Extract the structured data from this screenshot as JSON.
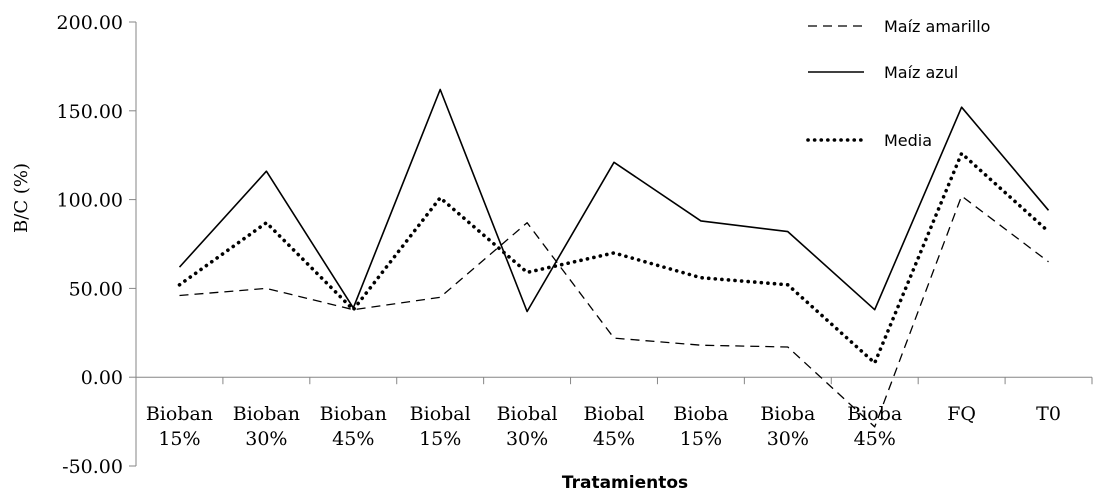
{
  "chart_data": {
    "type": "line",
    "xlabel": "Tratamientos",
    "ylabel": "B/C  (%)",
    "ylim": [
      -50,
      200
    ],
    "yticks": [
      "-50.00",
      "0.00",
      "50.00",
      "100.00",
      "150.00",
      "200.00"
    ],
    "categories": [
      [
        "Bioban",
        "15%"
      ],
      [
        "Bioban",
        "30%"
      ],
      [
        "Bioban",
        "45%"
      ],
      [
        "Biobal",
        "15%"
      ],
      [
        "Biobal",
        "30%"
      ],
      [
        "Biobal",
        "45%"
      ],
      [
        "Bioba",
        "15%"
      ],
      [
        "Bioba",
        "30%"
      ],
      [
        "Bioba",
        "45%"
      ],
      [
        "FQ"
      ],
      [
        "T0"
      ]
    ],
    "grid": false,
    "legend_position": "top-right",
    "series": [
      {
        "name": "Maíz amarillo",
        "style": "dashed",
        "values": [
          46,
          50,
          38,
          45,
          87,
          22,
          18,
          17,
          -28,
          102,
          65
        ]
      },
      {
        "name": "Maíz azul",
        "style": "solid",
        "values": [
          62,
          116,
          39,
          162,
          37,
          121,
          88,
          82,
          38,
          152,
          94
        ]
      },
      {
        "name": "Media",
        "style": "dotted",
        "values": [
          52,
          87,
          38,
          101,
          59,
          70,
          56,
          52,
          8,
          126,
          82
        ]
      }
    ]
  }
}
